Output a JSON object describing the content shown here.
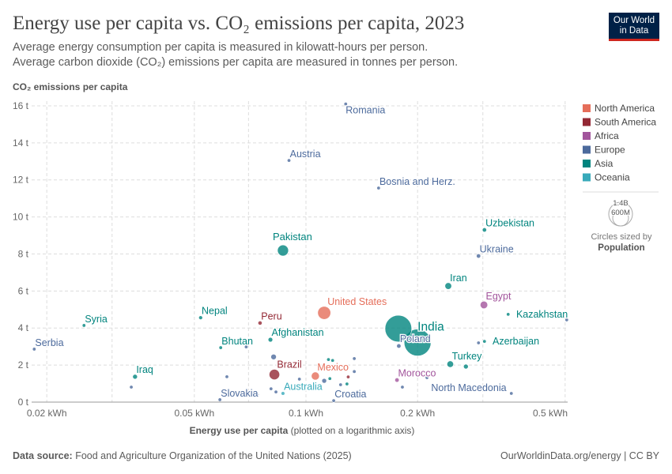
{
  "header": {
    "title": "Energy use per capita vs. CO₂ emissions per capita, 2023",
    "subtitle_1": "Average energy consumption per capita is measured in kilowatt-hours per person.",
    "subtitle_2": "Average carbon dioxide (CO₂) emissions per capita are measured in tonnes per person.",
    "logo": "Our World in Data"
  },
  "footer": {
    "source_label": "Data source:",
    "source": " Food and Agriculture Organization of the United Nations (2025)",
    "link": "OurWorldinData.org/energy | CC BY"
  },
  "colors": {
    "North America": "#E56E5A",
    "South America": "#932834",
    "Africa": "#A2559C",
    "Europe": "#4C6A9C",
    "Asia": "#00847E",
    "Oceania": "#38AABA"
  },
  "chart_data": {
    "type": "scatter",
    "ylabel": "CO₂ emissions per capita",
    "xlabel": "Energy use per capita",
    "xlabel_note": " (plotted on a logarithmic axis)",
    "x_scale": "log",
    "xlim": [
      0.0183,
      0.505
    ],
    "ylim": [
      0,
      16
    ],
    "grid": true,
    "x_ticks": [
      {
        "v": 0.02,
        "label": "0.02 kWh"
      },
      {
        "v": 0.05,
        "label": "0.05 kWh"
      },
      {
        "v": 0.1,
        "label": "0.1 kWh"
      },
      {
        "v": 0.2,
        "label": "0.2 kWh"
      },
      {
        "v": 0.5,
        "label": "0.5 kWh"
      }
    ],
    "x_grid": [
      0.02,
      0.03,
      0.05,
      0.07,
      0.1,
      0.2,
      0.3,
      0.5
    ],
    "y_ticks": [
      {
        "v": 0,
        "label": "0 t"
      },
      {
        "v": 2,
        "label": "2 t"
      },
      {
        "v": 4,
        "label": "4 t"
      },
      {
        "v": 6,
        "label": "6 t"
      },
      {
        "v": 8,
        "label": "8 t"
      },
      {
        "v": 10,
        "label": "10 t"
      },
      {
        "v": 12,
        "label": "12 t"
      },
      {
        "v": 14,
        "label": "14 t"
      },
      {
        "v": 16,
        "label": "16 t"
      }
    ],
    "legend": {
      "placement": "right",
      "entries": [
        "North America",
        "South America",
        "Africa",
        "Europe",
        "Asia",
        "Oceania"
      ],
      "size_labels": [
        "1.4B",
        "600M"
      ],
      "size_note": "Circles sized by",
      "size_var": "Population"
    },
    "points": [
      {
        "label": "Romania",
        "region": "Europe",
        "x": 0.128,
        "y": 16.1,
        "pop": 19,
        "pos": "below"
      },
      {
        "label": "Austria",
        "region": "Europe",
        "x": 0.09,
        "y": 13.05,
        "pop": 9,
        "pos": "above-right"
      },
      {
        "label": "Bosnia and Herz.",
        "region": "Europe",
        "x": 0.157,
        "y": 11.56,
        "pop": 3,
        "pos": "above-right"
      },
      {
        "label": "Uzbekistan",
        "region": "Asia",
        "x": 0.303,
        "y": 9.3,
        "pop": 36,
        "pos": "above-right"
      },
      {
        "label": "Pakistan",
        "region": "Asia",
        "x": 0.0867,
        "y": 8.19,
        "pop": 240,
        "pos": "above"
      },
      {
        "label": "Ukraine",
        "region": "Europe",
        "x": 0.292,
        "y": 7.89,
        "pop": 37,
        "pos": "above-right"
      },
      {
        "label": "Iran",
        "region": "Asia",
        "x": 0.242,
        "y": 6.27,
        "pop": 89,
        "pos": "above-right"
      },
      {
        "label": "Egypt",
        "region": "Africa",
        "x": 0.302,
        "y": 5.25,
        "pop": 112,
        "pos": "above-right"
      },
      {
        "label": "Kazakhstan",
        "region": "Asia",
        "x": 0.351,
        "y": 4.74,
        "pop": 20,
        "pos": "right"
      },
      {
        "label": "",
        "region": "Europe",
        "x": 0.505,
        "y": 4.44,
        "pop": 4
      },
      {
        "label": "Nepal",
        "region": "Asia",
        "x": 0.052,
        "y": 4.56,
        "pop": 30,
        "pos": "above-right"
      },
      {
        "label": "Syria",
        "region": "Asia",
        "x": 0.0252,
        "y": 4.14,
        "pop": 23,
        "pos": "above-right"
      },
      {
        "label": "Peru",
        "region": "South America",
        "x": 0.0752,
        "y": 4.27,
        "pop": 34,
        "pos": "above-right"
      },
      {
        "label": "United States",
        "region": "North America",
        "x": 0.112,
        "y": 4.82,
        "pop": 335,
        "pos": "above-right"
      },
      {
        "label": "",
        "region": "Asia",
        "x": 0.1775,
        "y": 3.97,
        "pop": 1410
      },
      {
        "label": "India",
        "region": "Asia",
        "x": 0.2,
        "y": 3.22,
        "pop": 1430,
        "pos": "above-right-big"
      },
      {
        "label": "Poland",
        "region": "Europe",
        "x": 0.178,
        "y": 3.03,
        "pop": 37,
        "pos": "above-right"
      },
      {
        "label": "Afghanistan",
        "region": "Asia",
        "x": 0.0802,
        "y": 3.37,
        "pop": 42,
        "pos": "above-right"
      },
      {
        "label": "Bhutan",
        "region": "Asia",
        "x": 0.0589,
        "y": 2.94,
        "pop": 1,
        "pos": "above-right"
      },
      {
        "label": "",
        "region": "Europe",
        "x": 0.069,
        "y": 2.98,
        "pop": 3
      },
      {
        "label": "Serbia",
        "region": "Europe",
        "x": 0.0185,
        "y": 2.86,
        "pop": 7,
        "pos": "above-right"
      },
      {
        "label": "Azerbaijan",
        "region": "Asia",
        "x": 0.303,
        "y": 3.28,
        "pop": 10,
        "pos": "right"
      },
      {
        "label": "",
        "region": "Europe",
        "x": 0.292,
        "y": 3.2,
        "pop": 4
      },
      {
        "label": "Turkey",
        "region": "Asia",
        "x": 0.245,
        "y": 2.05,
        "pop": 85,
        "pos": "above-right"
      },
      {
        "label": "",
        "region": "Asia",
        "x": 0.27,
        "y": 1.92,
        "pop": 45
      },
      {
        "label": "",
        "region": "Europe",
        "x": 0.0818,
        "y": 2.44,
        "pop": 60
      },
      {
        "label": "Brazil",
        "region": "South America",
        "x": 0.0822,
        "y": 1.49,
        "pop": 216,
        "pos": "above-right"
      },
      {
        "label": "Mexico",
        "region": "North America",
        "x": 0.106,
        "y": 1.41,
        "pop": 128,
        "pos": "above-right"
      },
      {
        "label": "Iraq",
        "region": "Asia",
        "x": 0.0346,
        "y": 1.37,
        "pop": 45,
        "pos": "above-right"
      },
      {
        "label": "Morocco",
        "region": "Africa",
        "x": 0.176,
        "y": 1.19,
        "pop": 37,
        "pos": "above-right"
      },
      {
        "label": "North Macedonia",
        "region": "Europe",
        "x": 0.358,
        "y": 0.47,
        "pop": 2,
        "pos": "left"
      },
      {
        "label": "Croatia",
        "region": "Europe",
        "x": 0.1188,
        "y": 0.08,
        "pop": 4,
        "pos": "above-right"
      },
      {
        "label": "Slovakia",
        "region": "Europe",
        "x": 0.0586,
        "y": 0.13,
        "pop": 5,
        "pos": "above-right"
      },
      {
        "label": "Australia",
        "region": "Oceania",
        "x": 0.0867,
        "y": 0.47,
        "pop": 27,
        "pos": "above-right"
      },
      {
        "label": "",
        "region": "Europe",
        "x": 0.112,
        "y": 1.15,
        "pop": 45
      },
      {
        "label": "",
        "region": "Asia",
        "x": 0.116,
        "y": 1.27,
        "pop": 10
      },
      {
        "label": "",
        "region": "Asia",
        "x": 0.115,
        "y": 2.3,
        "pop": 8
      },
      {
        "label": "",
        "region": "Asia",
        "x": 0.118,
        "y": 2.25,
        "pop": 8
      },
      {
        "label": "",
        "region": "Europe",
        "x": 0.135,
        "y": 2.35,
        "pop": 6
      },
      {
        "label": "",
        "region": "Europe",
        "x": 0.135,
        "y": 1.65,
        "pop": 6
      },
      {
        "label": "",
        "region": "South America",
        "x": 0.13,
        "y": 1.36,
        "pop": 20
      },
      {
        "label": "",
        "region": "Asia",
        "x": 0.129,
        "y": 0.98,
        "pop": 7
      },
      {
        "label": "",
        "region": "Europe",
        "x": 0.124,
        "y": 0.94,
        "pop": 7
      },
      {
        "label": "",
        "region": "Europe",
        "x": 0.0805,
        "y": 0.72,
        "pop": 6
      },
      {
        "label": "",
        "region": "Europe",
        "x": 0.083,
        "y": 0.55,
        "pop": 6
      },
      {
        "label": "",
        "region": "Europe",
        "x": 0.096,
        "y": 1.24,
        "pop": 6
      },
      {
        "label": "",
        "region": "Europe",
        "x": 0.0612,
        "y": 1.37,
        "pop": 6
      },
      {
        "label": "",
        "region": "Europe",
        "x": 0.0338,
        "y": 0.81,
        "pop": 5
      },
      {
        "label": "",
        "region": "Europe",
        "x": 0.182,
        "y": 0.81,
        "pop": 5
      },
      {
        "label": "",
        "region": "Europe",
        "x": 0.212,
        "y": 1.32,
        "pop": 5
      },
      {
        "label": "",
        "region": "Europe",
        "x": 0.074,
        "y": 0.38,
        "pop": 2
      }
    ]
  }
}
